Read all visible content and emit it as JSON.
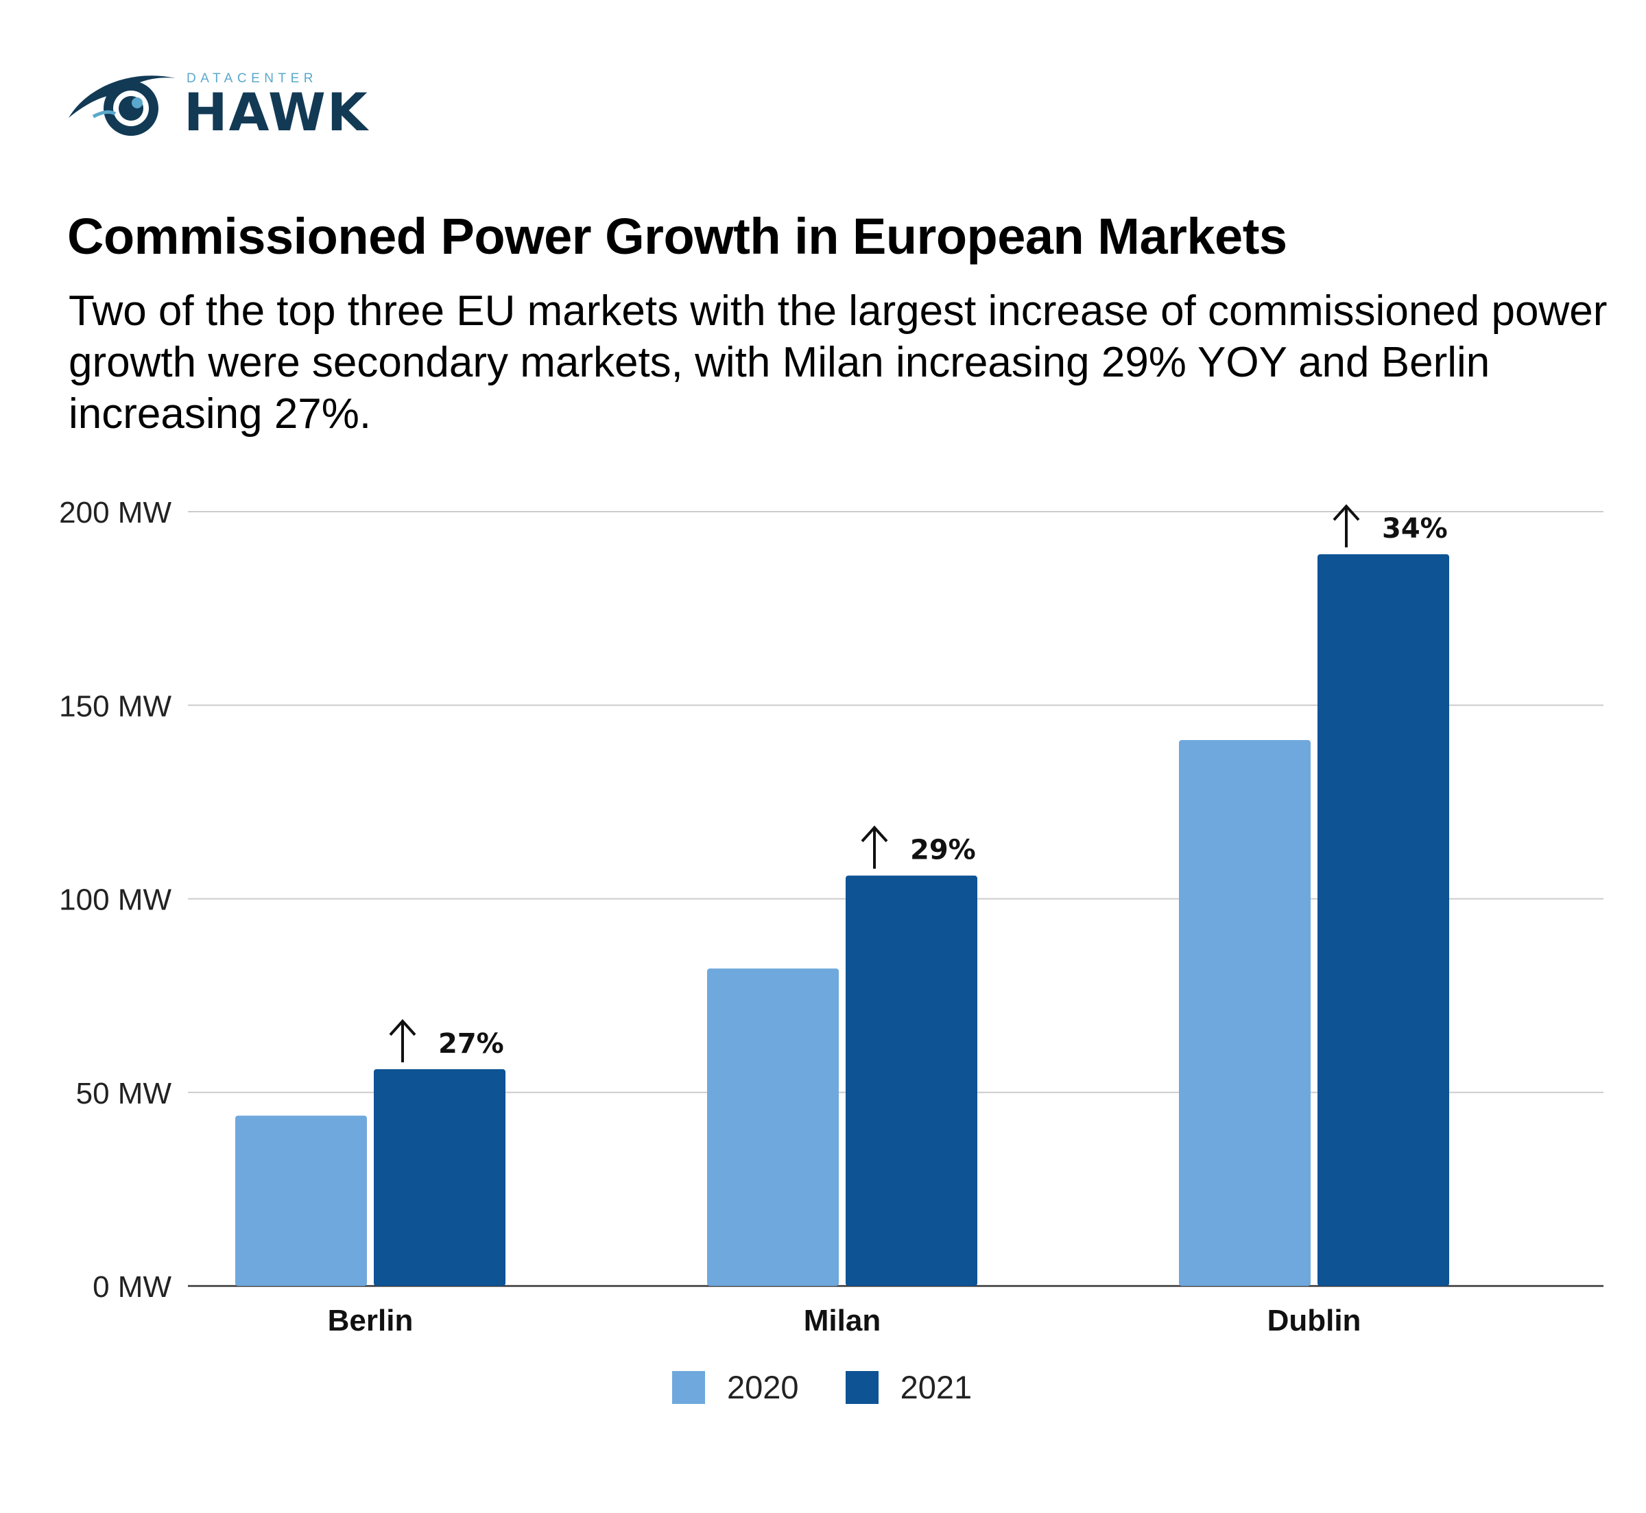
{
  "brand": {
    "small_text": "DATACENTER",
    "name": "HAWK",
    "icon": "hawk-eye-logo",
    "colors": {
      "dark": "#123a55",
      "light": "#5aa8cc"
    }
  },
  "title": "Commissioned Power Growth in European Markets",
  "subtitle": "Two of the top three EU markets with the largest increase of commissioned power growth were secondary markets, with Milan increasing 29% YOY and Berlin increasing 27%.",
  "chart_data": {
    "type": "bar",
    "categories": [
      "Berlin",
      "Milan",
      "Dublin"
    ],
    "series": [
      {
        "name": "2020",
        "color": "#6fa8dc",
        "values": [
          44,
          82,
          141
        ]
      },
      {
        "name": "2021",
        "color": "#0e5394",
        "values": [
          56,
          106,
          189
        ]
      }
    ],
    "annotations": [
      {
        "category": "Berlin",
        "text": "27%",
        "icon": "up-arrow-icon"
      },
      {
        "category": "Milan",
        "text": "29%",
        "icon": "up-arrow-icon"
      },
      {
        "category": "Dublin",
        "text": "34%",
        "icon": "up-arrow-icon"
      }
    ],
    "ylim": [
      0,
      200
    ],
    "yticks": [
      "0 MW",
      "50 MW",
      "100 MW",
      "150 MW",
      "200 MW"
    ],
    "ytick_values": [
      0,
      50,
      100,
      150,
      200
    ],
    "grid": true,
    "legend_position": "bottom-center",
    "xlabel": "",
    "ylabel": ""
  }
}
